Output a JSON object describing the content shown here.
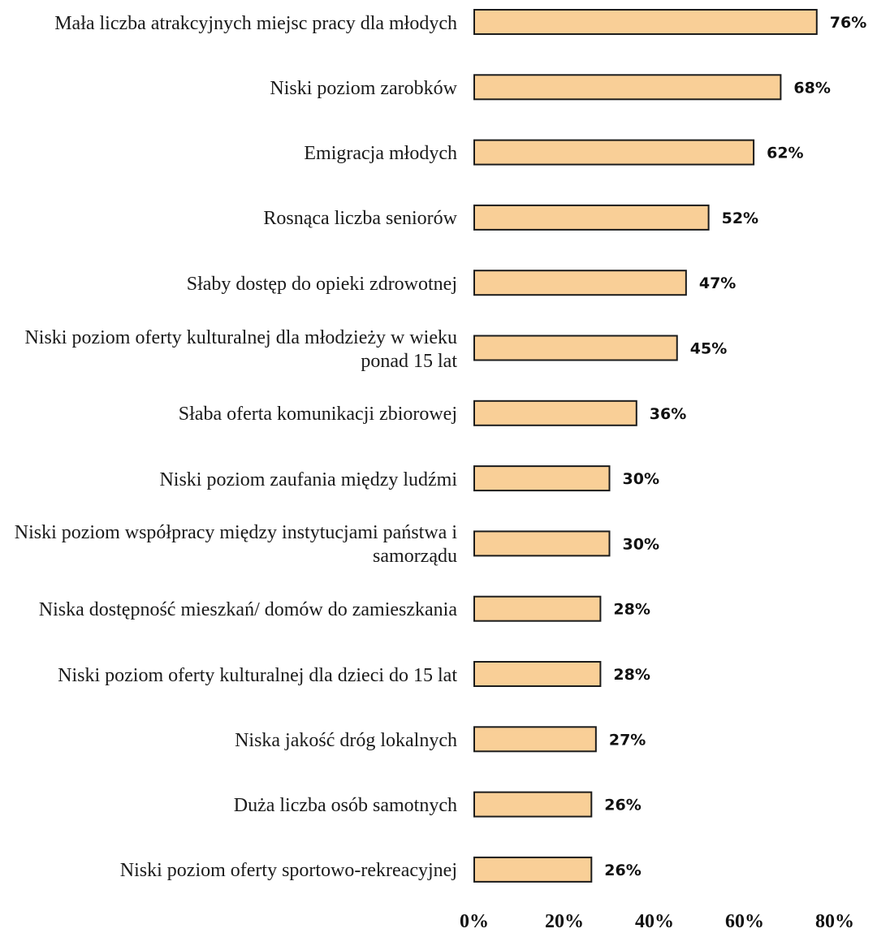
{
  "chart_data": {
    "type": "bar",
    "orientation": "horizontal",
    "categories": [
      "Mała liczba atrakcyjnych miejsc pracy dla młodych",
      "Niski poziom zarobków",
      "Emigracja młodych",
      "Rosnąca liczba seniorów",
      "Słaby dostęp do opieki zdrowotnej",
      "Niski poziom oferty kulturalnej dla młodzieży w wieku ponad 15 lat",
      "Słaba oferta komunikacji zbiorowej",
      "Niski poziom zaufania między ludźmi",
      "Niski poziom współpracy między instytucjami państwa i samorządu",
      "Niska dostępność mieszkań/ domów do zamieszkania",
      "Niski poziom oferty kulturalnej dla dzieci do 15 lat",
      "Niska jakość dróg lokalnych",
      "Duża liczba osób samotnych",
      "Niski poziom oferty sportowo-rekreacyjnej"
    ],
    "values": [
      76,
      68,
      62,
      52,
      47,
      45,
      36,
      30,
      30,
      28,
      28,
      27,
      26,
      26
    ],
    "value_labels": [
      "76%",
      "68%",
      "62%",
      "52%",
      "47%",
      "45%",
      "36%",
      "30%",
      "30%",
      "28%",
      "28%",
      "27%",
      "26%",
      "26%"
    ],
    "xlim": [
      0,
      80
    ],
    "x_ticks": [
      0,
      20,
      40,
      60,
      80
    ],
    "x_tick_labels": [
      "0%",
      "20%",
      "40%",
      "60%",
      "80%"
    ],
    "bar_color": "#f9cf97",
    "bar_border_color": "#1c1c1c",
    "grid": false,
    "legend": "none"
  }
}
